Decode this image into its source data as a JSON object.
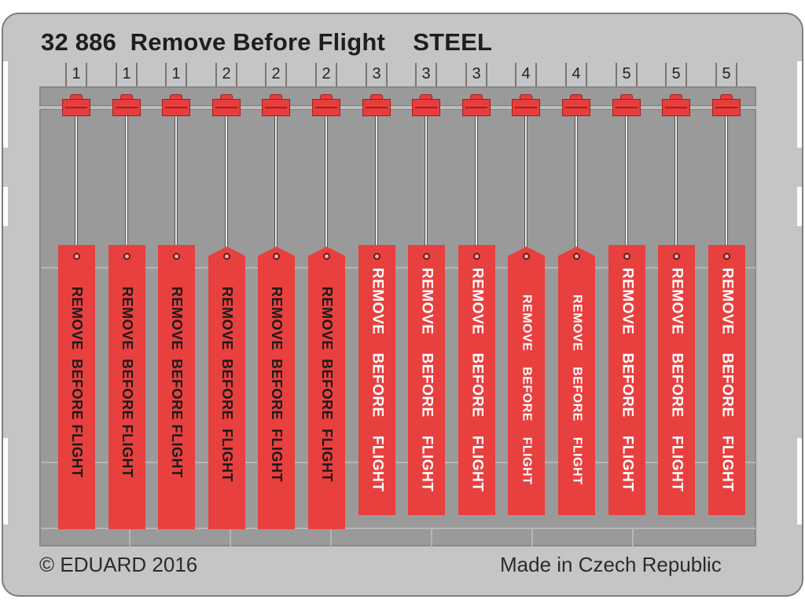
{
  "header": {
    "title": "32 886  Remove Before Flight    STEEL"
  },
  "footer": {
    "copyright": "© EDUARD 2016",
    "origin": "Made in Czech Republic"
  },
  "tags": [
    {
      "number": "1",
      "text": "REMOVE  BEFORE FLIGHT",
      "style": "dark",
      "shape": "flat"
    },
    {
      "number": "1",
      "text": "REMOVE  BEFORE FLIGHT",
      "style": "dark",
      "shape": "flat"
    },
    {
      "number": "1",
      "text": "REMOVE  BEFORE FLIGHT",
      "style": "dark",
      "shape": "flat"
    },
    {
      "number": "2",
      "text": "REMOVE  BEFORE  FLIGHT",
      "style": "dark",
      "shape": "pointed"
    },
    {
      "number": "2",
      "text": "REMOVE  BEFORE  FLIGHT",
      "style": "dark",
      "shape": "pointed"
    },
    {
      "number": "2",
      "text": "REMOVE  BEFORE  FLIGHT",
      "style": "dark",
      "shape": "pointed"
    },
    {
      "number": "3",
      "text": "REMOVE    BEFORE    FLIGHT",
      "style": "light",
      "shape": "flat"
    },
    {
      "number": "3",
      "text": "REMOVE    BEFORE    FLIGHT",
      "style": "light",
      "shape": "flat"
    },
    {
      "number": "3",
      "text": "REMOVE    BEFORE    FLIGHT",
      "style": "light",
      "shape": "flat"
    },
    {
      "number": "4",
      "text": "REMOVE    BEFORE    FLIGHT",
      "style": "light",
      "shape": "pointed"
    },
    {
      "number": "4",
      "text": "REMOVE    BEFORE    FLIGHT",
      "style": "light",
      "shape": "pointed"
    },
    {
      "number": "5",
      "text": "REMOVE    BEFORE    FLIGHT",
      "style": "light",
      "shape": "flat"
    },
    {
      "number": "5",
      "text": "REMOVE    BEFORE    FLIGHT",
      "style": "light",
      "shape": "flat"
    },
    {
      "number": "5",
      "text": "REMOVE    BEFORE    FLIGHT",
      "style": "light",
      "shape": "flat"
    }
  ],
  "colors": {
    "tag_red": "#e8403f",
    "metal": "#c5c5c5",
    "panel": "#9a9a9a"
  }
}
